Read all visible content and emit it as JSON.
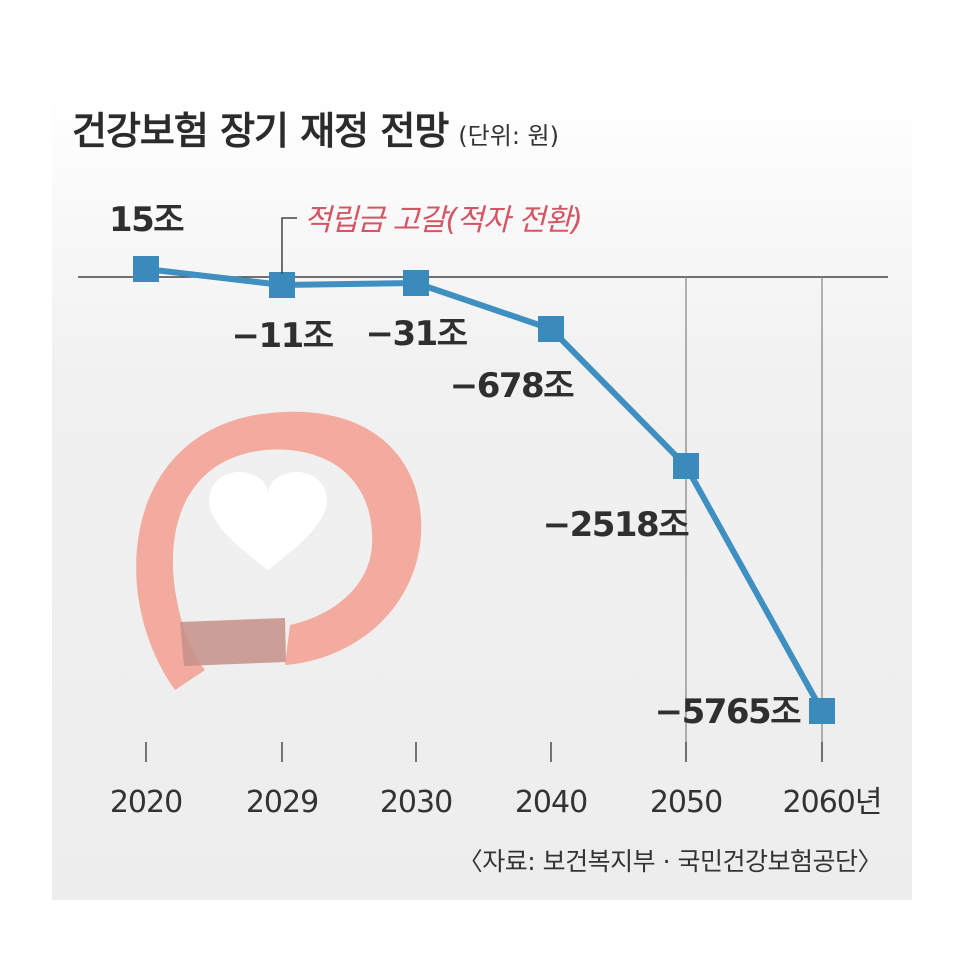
{
  "chart_data": {
    "type": "line",
    "title": "건강보험 장기 재정 전망",
    "subtitle": "(단위: 원)",
    "source": "〈자료: 보건복지부 · 국민건강보험공단〉",
    "annotation": "적립금 고갈(적자 전환)",
    "x": [
      "2020",
      "2029",
      "2030",
      "2040",
      "2050",
      "2060년"
    ],
    "values": [
      15,
      -11,
      -31,
      -678,
      -2518,
      -5765
    ],
    "data_labels": [
      "15조",
      "−11조",
      "−31조",
      "−678조",
      "−2518조",
      "−5765조"
    ],
    "unit_suffix": "조",
    "colors": {
      "line": "#3f8fc0",
      "marker": "#3a8abb",
      "annotation": "#d45563",
      "logo": "#f2ab9e"
    }
  }
}
